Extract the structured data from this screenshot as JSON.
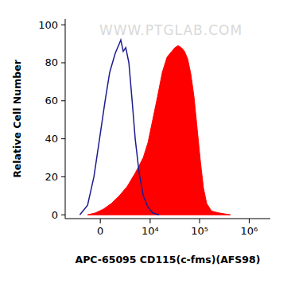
{
  "chart_data": {
    "type": "area",
    "x_label": "APC-65095 CD115(c-fms)(AFS98)",
    "y_label": "Relative Cell Number",
    "annotations": [
      "WWW.PTGLAB.COM"
    ],
    "log": "x",
    "xlim": [
      -4900,
      2660000
    ],
    "xticks": [
      0,
      {
        "value": 10000,
        "label": "10⁴"
      },
      {
        "value": 100000,
        "label": "10⁵"
      },
      {
        "value": 1000000,
        "label": "10⁶"
      }
    ],
    "ylim": [
      -2,
      103
    ],
    "yticks": [
      0,
      20,
      40,
      60,
      80,
      100
    ],
    "series": [
      {
        "type": "area",
        "color": "#ff0000",
        "x": [
          -1250,
          -450,
          295,
          1080,
          2000,
          3220,
          4860,
          7180,
          9020,
          11300,
          14100,
          17700,
          22100,
          27500,
          31900,
          37000,
          42900,
          49700,
          57600,
          66700,
          77300,
          89700,
          104000,
          120000,
          139000,
          174000,
          242000,
          421000
        ],
        "values": [
          0,
          1,
          3,
          6,
          10,
          15,
          22,
          30,
          38,
          50,
          62,
          75,
          83,
          86,
          88,
          89,
          88,
          86,
          82,
          74,
          62,
          45,
          28,
          14,
          6,
          2,
          1,
          0
        ]
      },
      {
        "type": "line",
        "color": "#1c1c8f",
        "x": [
          -2200,
          -1250,
          -600,
          -70,
          450,
          900,
          1500,
          2000,
          2200,
          2550,
          2950,
          3500,
          4150,
          4850,
          5900,
          7200,
          9000,
          11300,
          15200
        ],
        "values": [
          0,
          5,
          20,
          40,
          60,
          75,
          85,
          90,
          92,
          86,
          88,
          80,
          60,
          40,
          22,
          10,
          4,
          1,
          0
        ]
      }
    ]
  }
}
